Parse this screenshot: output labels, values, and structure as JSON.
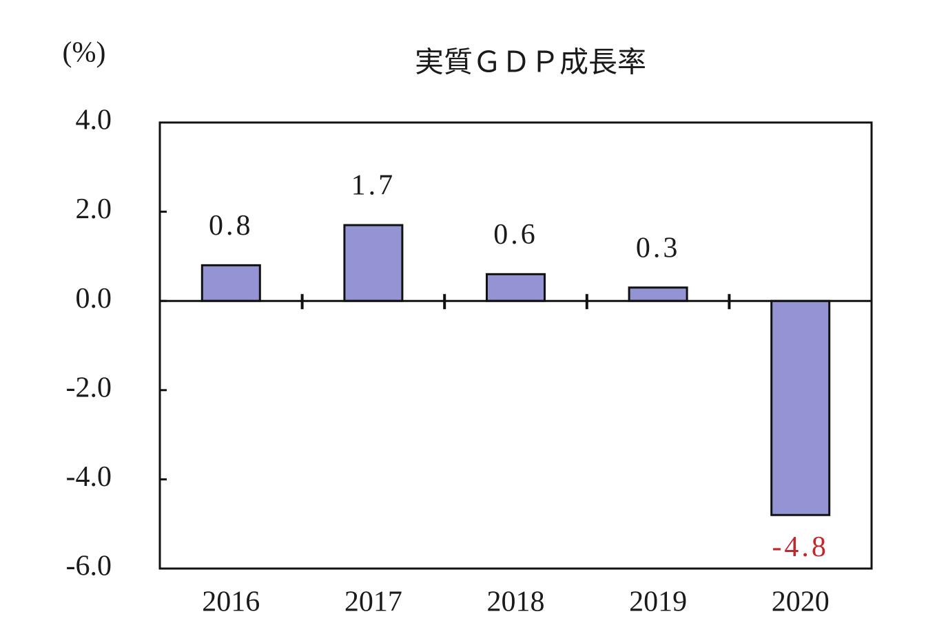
{
  "chart_data": {
    "type": "bar",
    "title": "実質ＧＤＰ成長率",
    "y_unit": "(%)",
    "categories": [
      "2016",
      "2017",
      "2018",
      "2019",
      "2020"
    ],
    "values": [
      0.8,
      1.7,
      0.6,
      0.3,
      -4.8
    ],
    "value_label_colors": [
      "#1a1a1a",
      "#1a1a1a",
      "#1a1a1a",
      "#1a1a1a",
      "#c0282d"
    ],
    "color": "#9494d4",
    "ylim": [
      -6,
      4
    ],
    "yticks": [
      {
        "value": 4,
        "label": "4.0"
      },
      {
        "value": 2,
        "label": "2.0"
      },
      {
        "value": 0,
        "label": "0.0"
      },
      {
        "value": -2,
        "label": "-2.0"
      },
      {
        "value": -4,
        "label": "-4.0"
      },
      {
        "value": -6,
        "label": "-6.0"
      }
    ],
    "grid": false
  }
}
